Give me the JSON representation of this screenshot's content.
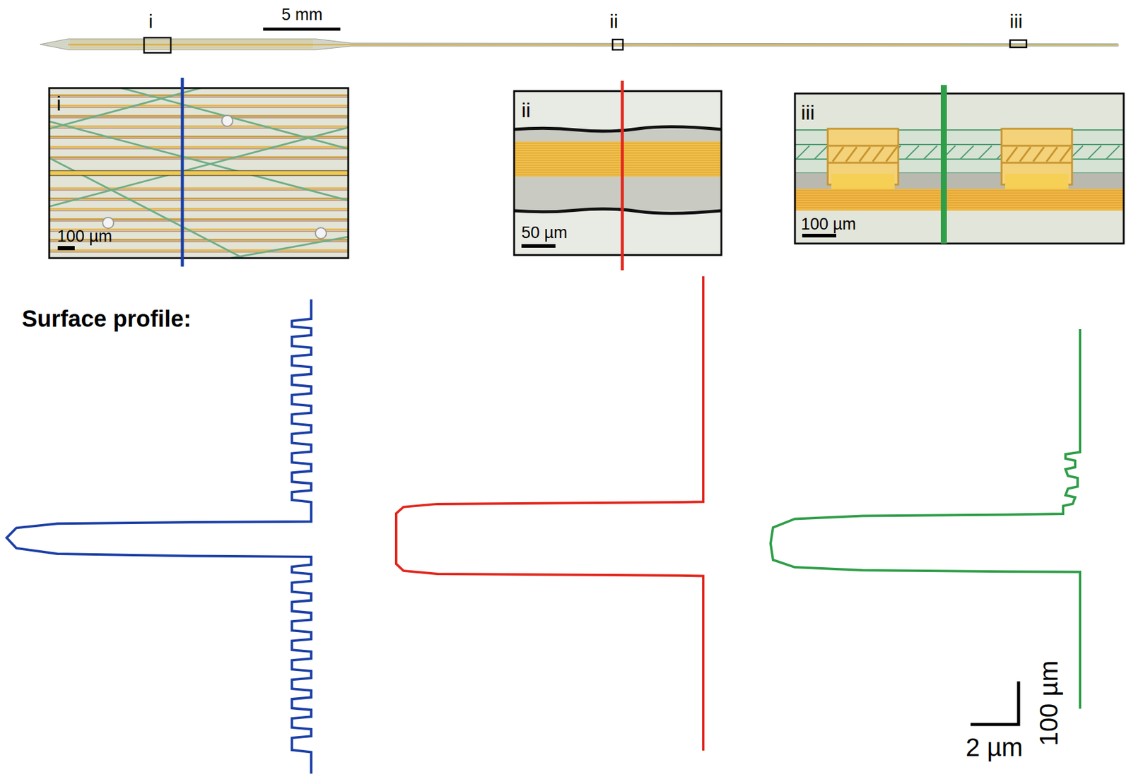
{
  "overview": {
    "scale_bar": "5 mm",
    "regions": [
      "i",
      "ii",
      "iii"
    ]
  },
  "panels": [
    {
      "label": "i",
      "scale_bar": "100 µm"
    },
    {
      "label": "ii",
      "scale_bar": "50 µm"
    },
    {
      "label": "iii",
      "scale_bar": "100 µm"
    }
  ],
  "profile_heading": "Surface profile:",
  "scale_bar": {
    "horizontal": "2 µm",
    "vertical": "100 µm"
  },
  "chart_data": [
    {
      "type": "line",
      "color": "#1b3fa6",
      "grid": false,
      "tick_labels": false,
      "xlim": [
        -12.8,
        0.5
      ],
      "xticks": [
        -12.8,
        0.5
      ],
      "ylim": [
        0,
        1100
      ],
      "yticks": [
        0,
        1100
      ],
      "x": [
        0,
        0,
        -0.8,
        -0.8,
        0,
        0,
        -0.8,
        -0.8,
        0,
        0,
        -0.8,
        -0.8,
        0,
        0,
        -0.8,
        -0.8,
        0,
        0,
        -0.8,
        -0.8,
        0,
        0,
        -0.8,
        -0.8,
        0,
        0,
        -0.8,
        -0.8,
        0,
        0,
        -0.8,
        -0.8,
        0,
        0,
        -0.8,
        -0.8,
        0,
        0,
        -0.8,
        -0.8,
        0,
        0,
        -5,
        -10.5,
        -12.2,
        -12.6,
        -12.2,
        -10.5,
        -5,
        0,
        0,
        -0.8,
        -0.8,
        0,
        0,
        -0.8,
        -0.8,
        0,
        0,
        -0.8,
        -0.8,
        0,
        0,
        -0.8,
        -0.8,
        0,
        0,
        -0.8,
        -0.8,
        0,
        0,
        -0.8,
        -0.8,
        0,
        0,
        -0.8,
        -0.8,
        0,
        0,
        -0.8,
        -0.8,
        0,
        0,
        -0.8,
        -0.8,
        0,
        0,
        -0.8,
        -0.8,
        0,
        0
      ],
      "y": [
        0,
        45,
        50,
        63,
        67,
        83,
        87,
        108,
        112,
        128,
        132,
        153,
        157,
        173,
        177,
        198,
        202,
        218,
        222,
        243,
        247,
        263,
        267,
        288,
        292,
        308,
        312,
        333,
        337,
        353,
        357,
        378,
        382,
        398,
        402,
        423,
        427,
        443,
        447,
        465,
        470,
        515,
        517,
        520,
        530,
        553,
        577,
        590,
        595,
        597,
        615,
        620,
        633,
        637,
        653,
        657,
        678,
        682,
        698,
        702,
        723,
        727,
        743,
        747,
        768,
        772,
        788,
        792,
        813,
        817,
        833,
        837,
        858,
        862,
        878,
        882,
        903,
        907,
        923,
        927,
        948,
        952,
        968,
        972,
        993,
        997,
        1013,
        1017,
        1045,
        1050,
        1100
      ]
    },
    {
      "type": "line",
      "color": "#e3261c",
      "grid": false,
      "tick_labels": false,
      "xlim": [
        -12.8,
        0.5
      ],
      "xticks": [
        -12.8,
        0.5
      ],
      "ylim": [
        0,
        1100
      ],
      "yticks": [
        0,
        1100
      ],
      "x": [
        0,
        0,
        -1,
        -11,
        -12.4,
        -12.7,
        -12.7,
        -12.4,
        -11,
        -1,
        0,
        0
      ],
      "y": [
        0,
        523,
        524,
        528,
        535,
        550,
        667,
        683,
        690,
        694,
        695,
        1100
      ]
    },
    {
      "type": "line",
      "color": "#2f9e48",
      "grid": false,
      "tick_labels": false,
      "xlim": [
        -13,
        0.5
      ],
      "xticks": [
        -13,
        0.5
      ],
      "ylim": [
        0,
        880
      ],
      "yticks": [
        0,
        880
      ],
      "x": [
        0,
        0,
        -0.6,
        -0.6,
        -0.2,
        -0.2,
        -0.6,
        -0.5,
        -0.1,
        -0.1,
        -0.5,
        -0.6,
        -0.2,
        -0.3,
        -0.7,
        -0.7,
        -3,
        -9,
        -11.8,
        -12.7,
        -12.8,
        -12.7,
        -11.8,
        -9,
        -3,
        0,
        0
      ],
      "y": [
        0,
        285,
        290,
        300,
        305,
        320,
        325,
        340,
        345,
        365,
        370,
        385,
        390,
        405,
        410,
        428,
        430,
        433,
        440,
        460,
        497,
        535,
        552,
        559,
        562,
        563,
        880
      ]
    }
  ]
}
